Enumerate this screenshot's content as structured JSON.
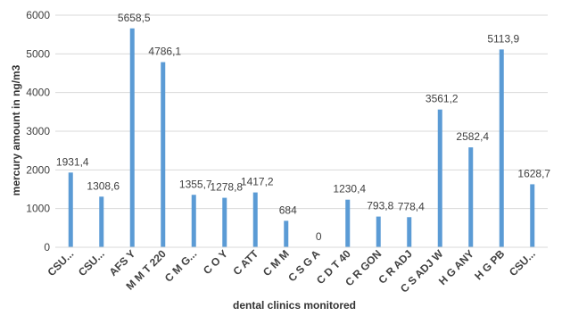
{
  "chart_data": {
    "type": "bar",
    "title": "",
    "xlabel": "dental clinics monitored",
    "ylabel": "mercury amount in ng/m3",
    "ylim": [
      0,
      6000
    ],
    "yticks": [
      "0",
      "1000",
      "2000",
      "3000",
      "4000",
      "5000",
      "6000"
    ],
    "grid": true,
    "legend": "none",
    "bar_color": "#5b9bd5",
    "categories": [
      "CSU...",
      "CSU...",
      "AFS Y",
      "M M T 220",
      "C M G...",
      "C O Y",
      "C ATT",
      "C M M",
      "C S G A",
      "C D T 40",
      "C R GON",
      "C R ADJ",
      "C S ADJ W",
      "H G ANY",
      "H G PB",
      "CSU..."
    ],
    "values": [
      1931.4,
      1308.6,
      5658.5,
      4786.1,
      1355.7,
      1278.8,
      1417.2,
      684,
      0,
      1230.4,
      793.8,
      778.4,
      3561.2,
      2582.4,
      5113.9,
      1628.7
    ],
    "data_labels": [
      "1931,4",
      "1308,6",
      "5658,5",
      "4786,1",
      "1355,7",
      "1278,8",
      "1417,2",
      "684",
      "0",
      "1230,4",
      "793,8",
      "778,4",
      "3561,2",
      "2582,4",
      "5113,9",
      "1628,7"
    ]
  }
}
